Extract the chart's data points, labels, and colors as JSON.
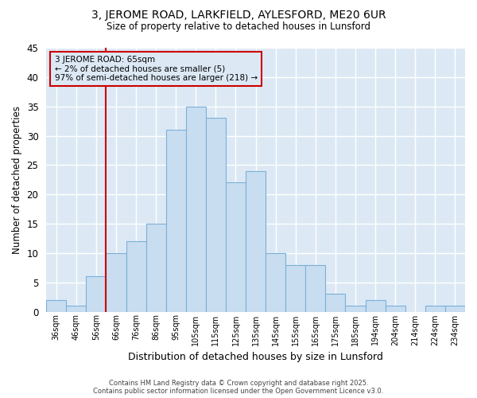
{
  "title1": "3, JEROME ROAD, LARKFIELD, AYLESFORD, ME20 6UR",
  "title2": "Size of property relative to detached houses in Lunsford",
  "xlabel": "Distribution of detached houses by size in Lunsford",
  "ylabel": "Number of detached properties",
  "footer": "Contains HM Land Registry data © Crown copyright and database right 2025.\nContains public sector information licensed under the Open Government Licence v3.0.",
  "annotation_line1": "3 JEROME ROAD: 65sqm",
  "annotation_line2": "← 2% of detached houses are smaller (5)",
  "annotation_line3": "97% of semi-detached houses are larger (218) →",
  "bar_labels": [
    "36sqm",
    "46sqm",
    "56sqm",
    "66sqm",
    "76sqm",
    "86sqm",
    "95sqm",
    "105sqm",
    "115sqm",
    "125sqm",
    "135sqm",
    "145sqm",
    "155sqm",
    "165sqm",
    "175sqm",
    "185sqm",
    "194sqm",
    "204sqm",
    "214sqm",
    "224sqm",
    "234sqm"
  ],
  "bar_values": [
    2,
    1,
    6,
    10,
    12,
    15,
    31,
    35,
    33,
    22,
    24,
    10,
    8,
    8,
    3,
    1,
    2,
    1,
    0,
    1,
    1
  ],
  "bar_color": "#c9ddf0",
  "bar_edge_color": "#7ab0d8",
  "vline_color": "#cc0000",
  "vline_x": 2.5,
  "annotation_box_color": "#cc0000",
  "plot_bg_color": "#dce9f5",
  "fig_bg_color": "#ffffff",
  "ylim": [
    0,
    45
  ],
  "yticks": [
    0,
    5,
    10,
    15,
    20,
    25,
    30,
    35,
    40,
    45
  ],
  "grid_color": "#ffffff",
  "figsize": [
    6.0,
    5.0
  ],
  "dpi": 100
}
